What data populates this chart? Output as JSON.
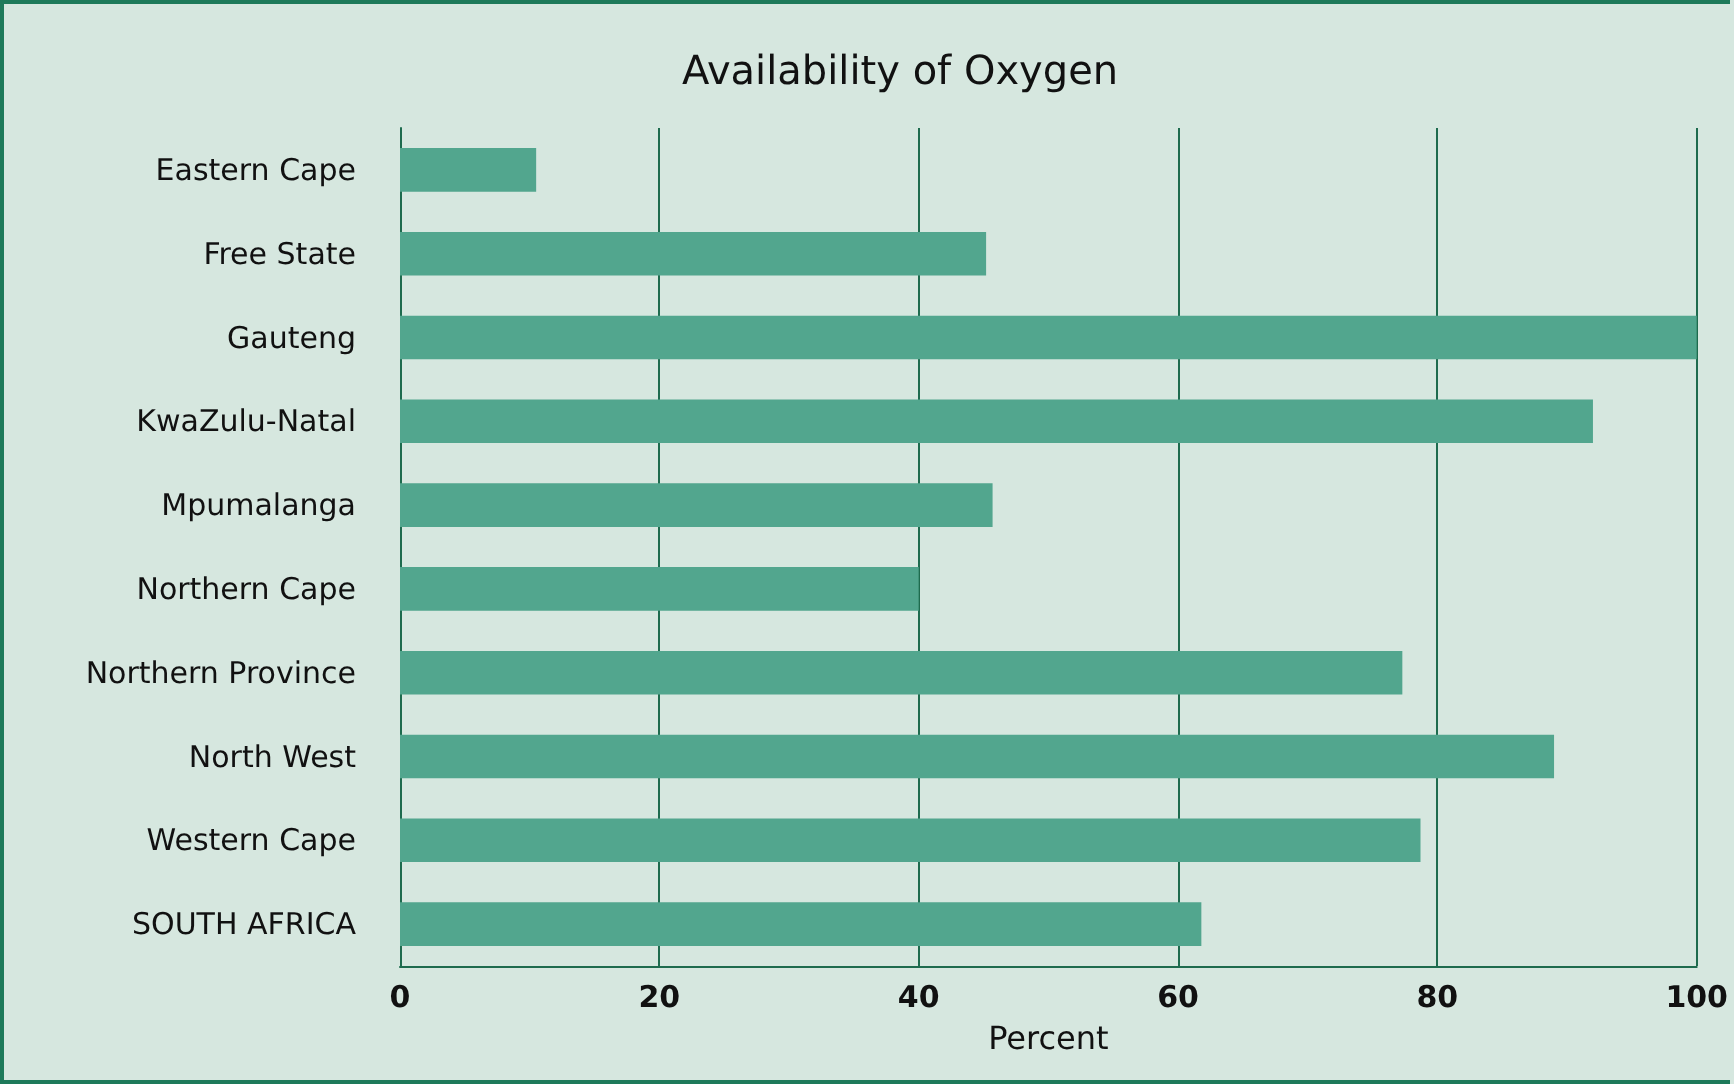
{
  "chart_data": {
    "type": "bar",
    "orientation": "horizontal",
    "title": "Availability of Oxygen",
    "xlabel": "Percent",
    "categories": [
      "Eastern Cape",
      "Free State",
      "Gauteng",
      "KwaZulu-Natal",
      "Mpumalanga",
      "Northern Cape",
      "Northern Province",
      "North West",
      "Western Cape",
      "SOUTH AFRICA"
    ],
    "values": [
      10.5,
      45.2,
      100,
      92,
      45.7,
      40,
      77.3,
      89,
      78.7,
      61.8
    ],
    "color": "#52a68e",
    "xlim": [
      0,
      100
    ],
    "xticks": [
      0,
      20,
      40,
      60,
      80,
      100
    ],
    "grid": "x"
  }
}
